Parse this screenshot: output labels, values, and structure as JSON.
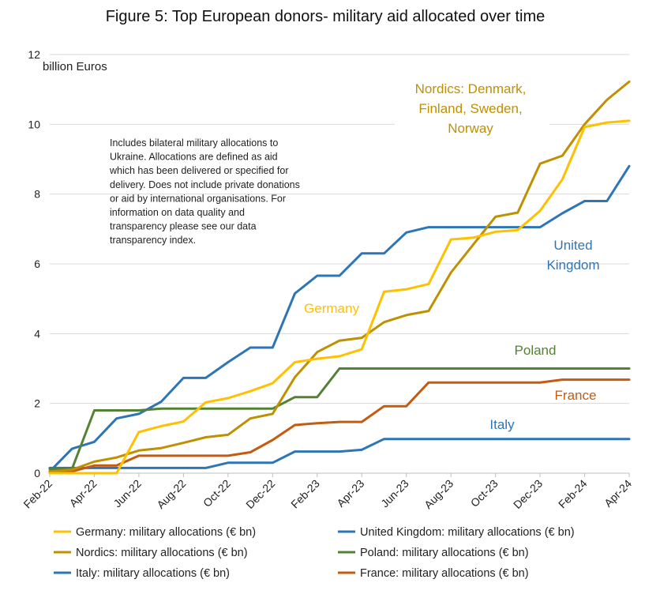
{
  "chart_data": {
    "type": "line",
    "title": "Figure 5: Top European donors- military aid allocated over time",
    "unit_label": "billion Euros",
    "note_lines": [
      "Includes bilateral military allocations to",
      "Ukraine. Allocations are defined as aid",
      "which has been delivered or specified for",
      "delivery. Does not include private donations",
      "or aid by international organisations.  For",
      "information on data quality and",
      "transparency please see our data",
      "transparency index."
    ],
    "ylim": [
      0,
      12
    ],
    "y_ticks": [
      "0",
      "2",
      "4",
      "6",
      "8",
      "10",
      "12"
    ],
    "grid": "horizontal",
    "legend_position": "bottom",
    "x": [
      "Feb-22",
      "Mar-22",
      "Apr-22",
      "May-22",
      "Jun-22",
      "Jul-22",
      "Aug-22",
      "Sep-22",
      "Oct-22",
      "Nov-22",
      "Dec-22",
      "Jan-23",
      "Feb-23",
      "Mar-23",
      "Apr-23",
      "May-23",
      "Jun-23",
      "Jul-23",
      "Aug-23",
      "Sep-23",
      "Oct-23",
      "Nov-23",
      "Dec-23",
      "Jan-24",
      "Feb-24",
      "Mar-24",
      "Apr-24"
    ],
    "x_tick_labels": [
      "Feb-22",
      "Apr-22",
      "Jun-22",
      "Aug-22",
      "Oct-22",
      "Dec-22",
      "Feb-23",
      "Apr-23",
      "Jun-23",
      "Aug-23",
      "Oct-23",
      "Dec-23",
      "Feb-24",
      "Apr-24"
    ],
    "series": [
      {
        "name": "United Kingdom: military allocations (€ bn)",
        "color": "#2e75b6",
        "values": [
          0.05,
          0.7,
          0.9,
          1.57,
          1.7,
          2.05,
          2.73,
          2.73,
          3.18,
          3.6,
          3.6,
          5.15,
          5.66,
          5.66,
          6.3,
          6.3,
          6.9,
          7.05,
          7.05,
          7.05,
          7.05,
          7.05,
          7.05,
          7.45,
          7.8,
          7.8,
          8.8
        ]
      },
      {
        "name": "Italy: military allocations (€ bn)",
        "color": "#2e75b6",
        "values": [
          0.15,
          0.15,
          0.15,
          0.15,
          0.15,
          0.15,
          0.15,
          0.15,
          0.3,
          0.3,
          0.3,
          0.62,
          0.62,
          0.62,
          0.67,
          0.98,
          0.98,
          0.98,
          0.98,
          0.98,
          0.98,
          0.98,
          0.98,
          0.98,
          0.98,
          0.98,
          0.98
        ]
      },
      {
        "name": "Poland: military allocations (€ bn)",
        "color": "#548235",
        "values": [
          0.12,
          0.12,
          1.8,
          1.8,
          1.8,
          1.85,
          1.85,
          1.85,
          1.85,
          1.85,
          1.85,
          2.18,
          2.18,
          3.0,
          3.0,
          3.0,
          3.0,
          3.0,
          3.0,
          3.0,
          3.0,
          3.0,
          3.0,
          3.0,
          3.0,
          3.0,
          3.0
        ]
      },
      {
        "name": "France: military allocations (€ bn)",
        "color": "#c55a11",
        "values": [
          0.05,
          0.05,
          0.22,
          0.22,
          0.5,
          0.5,
          0.5,
          0.5,
          0.5,
          0.6,
          0.95,
          1.38,
          1.43,
          1.47,
          1.47,
          1.92,
          1.92,
          2.6,
          2.6,
          2.6,
          2.6,
          2.6,
          2.6,
          2.68,
          2.68,
          2.68,
          2.68
        ]
      },
      {
        "name": "Nordics: military allocations (€ bn)",
        "color": "#bf9000",
        "values": [
          0.05,
          0.1,
          0.33,
          0.45,
          0.65,
          0.72,
          0.87,
          1.03,
          1.1,
          1.57,
          1.7,
          2.75,
          3.47,
          3.8,
          3.88,
          4.33,
          4.53,
          4.65,
          5.75,
          6.55,
          7.35,
          7.47,
          8.87,
          9.1,
          10.0,
          10.7,
          11.22
        ]
      },
      {
        "name": "Germany: military allocations (€ bn)",
        "color": "#ffc000",
        "values": [
          0.0,
          0.0,
          0.0,
          0.0,
          1.18,
          1.35,
          1.48,
          2.03,
          2.15,
          2.35,
          2.58,
          3.18,
          3.28,
          3.35,
          3.55,
          5.2,
          5.27,
          5.42,
          6.7,
          6.75,
          6.92,
          6.97,
          7.52,
          8.42,
          9.92,
          10.05,
          10.1
        ]
      }
    ],
    "annotations": [
      {
        "text": "Nordics: Denmark,",
        "color": "#bf9000"
      },
      {
        "text": "Finland, Sweden,",
        "color": "#bf9000"
      },
      {
        "text": "Norway",
        "color": "#bf9000"
      },
      {
        "text": "United",
        "color": "#2e75b6"
      },
      {
        "text": "Kingdom",
        "color": "#2e75b6"
      },
      {
        "text": "Germany",
        "color": "#ffc000"
      },
      {
        "text": "Poland",
        "color": "#548235"
      },
      {
        "text": "France",
        "color": "#c55a11"
      },
      {
        "text": "Italy",
        "color": "#2e75b6"
      }
    ],
    "legend": [
      {
        "label": "Germany: military allocations (€ bn)",
        "color": "#ffc000"
      },
      {
        "label": "United Kingdom: military allocations (€ bn)",
        "color": "#2e75b6"
      },
      {
        "label": "Nordics: military allocations (€ bn)",
        "color": "#bf9000"
      },
      {
        "label": "Poland: military allocations (€ bn)",
        "color": "#548235"
      },
      {
        "label": "Italy: military allocations (€ bn)",
        "color": "#2e75b6"
      },
      {
        "label": "France: military allocations (€ bn)",
        "color": "#c55a11"
      }
    ]
  }
}
